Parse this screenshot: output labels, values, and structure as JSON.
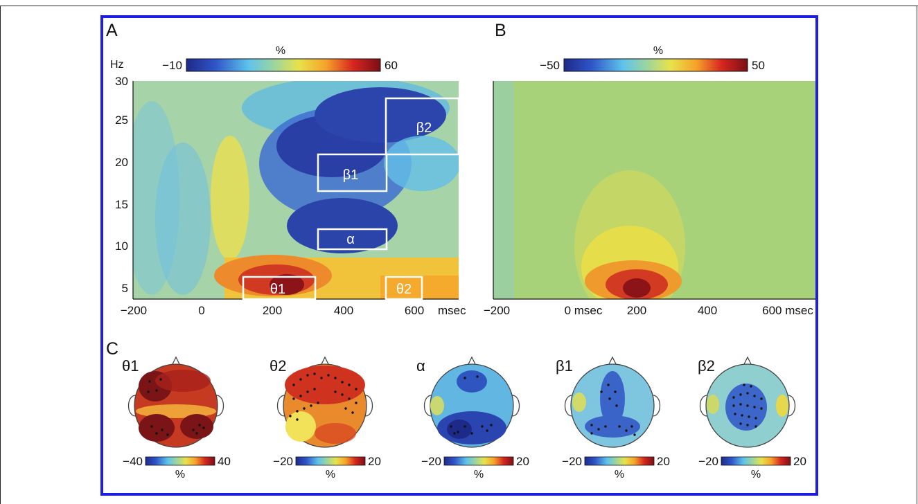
{
  "frame_color": "#1d1de0",
  "panels": {
    "a": {
      "letter": "A",
      "y_unit": "Hz",
      "y_ticks": [
        "30",
        "25",
        "20",
        "15",
        "10",
        "5"
      ],
      "x_ticks": [
        "−200",
        "0",
        "200",
        "400",
        "600"
      ],
      "x_unit": "msec",
      "colorbar": {
        "label": "%",
        "min": "−10",
        "max": "60"
      },
      "boxes": [
        "β1",
        "β2",
        "α",
        "θ1",
        "θ2"
      ]
    },
    "b": {
      "letter": "B",
      "x_ticks": [
        "−200",
        "0 msec",
        "200",
        "400",
        "600 msec"
      ],
      "colorbar": {
        "label": "%",
        "min": "−50",
        "max": "50"
      }
    },
    "c": {
      "letter": "C",
      "maps": [
        {
          "label": "θ1",
          "min": "−40",
          "max": "40",
          "unit": "%"
        },
        {
          "label": "θ2",
          "min": "−20",
          "max": "20",
          "unit": "%"
        },
        {
          "label": "α",
          "min": "−20",
          "max": "20",
          "unit": "%"
        },
        {
          "label": "β1",
          "min": "−20",
          "max": "20",
          "unit": "%"
        },
        {
          "label": "β2",
          "min": "−20",
          "max": "20",
          "unit": "%"
        }
      ]
    }
  }
}
